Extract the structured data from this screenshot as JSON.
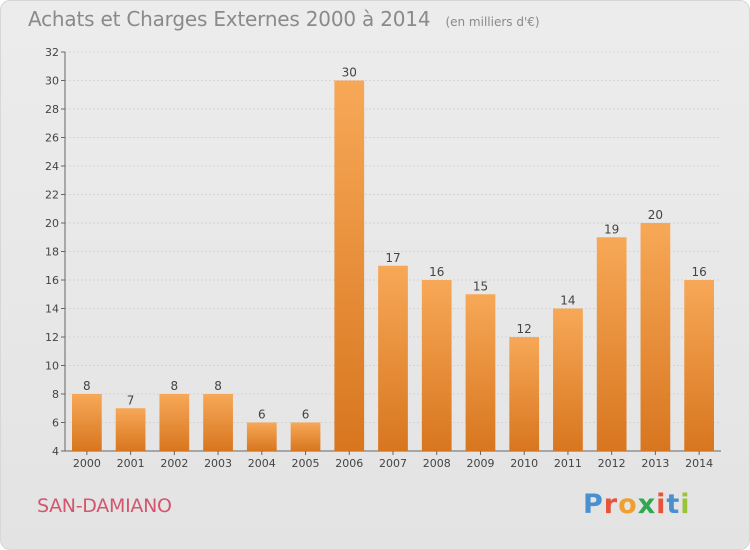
{
  "title": "Achats et Charges Externes 2000 à 2014",
  "subtitle": "(en milliers d'€)",
  "commune": "SAN-DAMIANO",
  "logo": {
    "text": "Proxiti",
    "letters": [
      "P",
      "r",
      "o",
      "x",
      "i",
      "t",
      "i"
    ]
  },
  "colors": {
    "bar_light": "#f7a857",
    "bar_dark": "#d8761f",
    "axis_text": "#444444",
    "title": "#8a8a8a",
    "commune": "#d2566e",
    "grid": "#d4d4d4"
  },
  "chart_data": {
    "type": "bar",
    "title": "Achats et Charges Externes 2000 à 2014",
    "subtitle": "(en milliers d'€)",
    "categories": [
      "2000",
      "2001",
      "2002",
      "2003",
      "2004",
      "2005",
      "2006",
      "2007",
      "2008",
      "2009",
      "2010",
      "2011",
      "2012",
      "2013",
      "2014"
    ],
    "values": [
      8,
      7,
      8,
      8,
      6,
      6,
      30,
      17,
      16,
      15,
      12,
      14,
      19,
      20,
      16
    ],
    "ylim": [
      4,
      32
    ],
    "yticks": [
      4,
      6,
      8,
      10,
      12,
      14,
      16,
      18,
      20,
      22,
      24,
      26,
      28,
      30,
      32
    ],
    "grid": true,
    "data_labels": true
  }
}
